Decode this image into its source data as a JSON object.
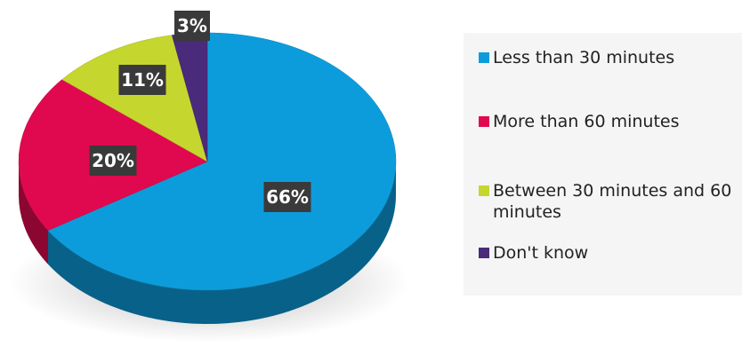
{
  "chart_data": {
    "type": "pie",
    "title": "",
    "slices": [
      {
        "label": "Less than 30 minutes",
        "value": 66,
        "display": "66%",
        "color": "#0d9cdb"
      },
      {
        "label": "More than 60 minutes",
        "value": 20,
        "display": "20%",
        "color": "#e0094f"
      },
      {
        "label": "Between 30 minutes and 60 minutes",
        "value": 11,
        "display": "11%",
        "color": "#c5d62e"
      },
      {
        "label": "Don't know",
        "value": 3,
        "display": "3%",
        "color": "#4a2a7a"
      }
    ],
    "legend_position": "right",
    "label_style": {
      "background": "#3a3a3a",
      "text_color": "#ffffff"
    }
  }
}
